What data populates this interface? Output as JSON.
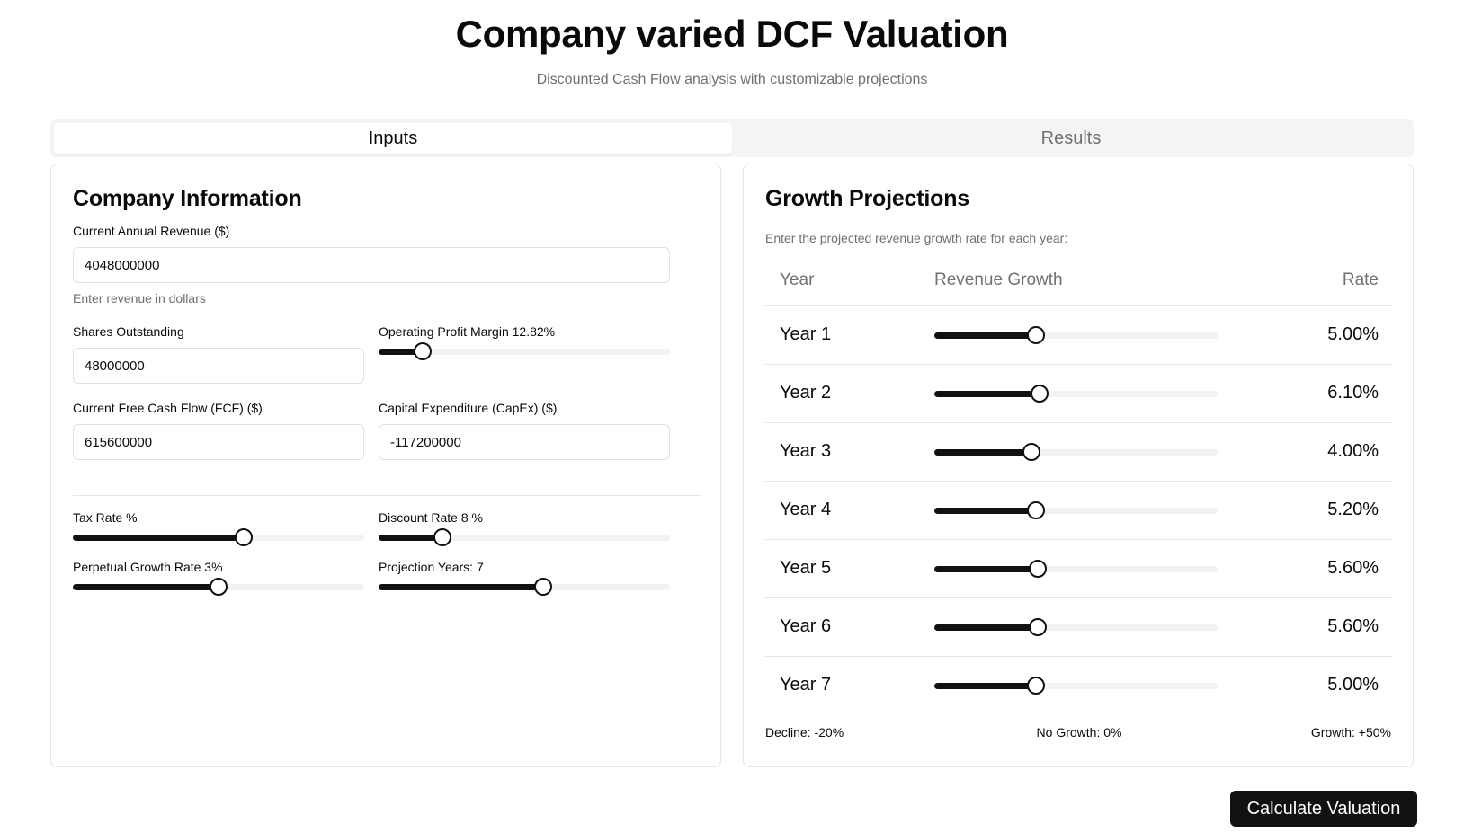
{
  "header": {
    "title": "Company varied DCF Valuation",
    "subtitle": "Discounted Cash Flow analysis with customizable projections"
  },
  "tabs": [
    {
      "label": "Inputs",
      "active": true
    },
    {
      "label": "Results",
      "active": false
    }
  ],
  "company": {
    "title": "Company Information",
    "revenue": {
      "label": "Current Annual Revenue ($)",
      "value": "4048000000",
      "hint": "Enter revenue in dollars"
    },
    "shares": {
      "label": "Shares Outstanding",
      "value": "48000000"
    },
    "margin": {
      "label": "Operating Profit Margin 12.82%",
      "fraction": 0.15
    },
    "fcf": {
      "label": "Current Free Cash Flow (FCF) ($)",
      "value": "615600000"
    },
    "capex": {
      "label": "Capital Expenditure (CapEx) ($)",
      "value": "-117200000"
    },
    "tax": {
      "label": "Tax Rate %",
      "fraction": 0.585
    },
    "discount": {
      "label": "Discount Rate 8 %",
      "fraction": 0.22
    },
    "perpetual": {
      "label": "Perpetual Growth Rate 3%",
      "fraction": 0.5
    },
    "years": {
      "label": "Projection Years: 7",
      "fraction": 0.565
    }
  },
  "growth": {
    "title": "Growth Projections",
    "description": "Enter the projected revenue growth rate for each year:",
    "columns": {
      "year": "Year",
      "growth": "Revenue Growth",
      "rate": "Rate"
    },
    "scale_min": -20,
    "scale_max": 50,
    "rows": [
      {
        "year": "Year 1",
        "rate": "5.00%",
        "value": 5.0
      },
      {
        "year": "Year 2",
        "rate": "6.10%",
        "value": 6.1
      },
      {
        "year": "Year 3",
        "rate": "4.00%",
        "value": 4.0
      },
      {
        "year": "Year 4",
        "rate": "5.20%",
        "value": 5.2
      },
      {
        "year": "Year 5",
        "rate": "5.60%",
        "value": 5.6
      },
      {
        "year": "Year 6",
        "rate": "5.60%",
        "value": 5.6
      },
      {
        "year": "Year 7",
        "rate": "5.00%",
        "value": 5.0
      }
    ],
    "legend": {
      "min": "Decline: -20%",
      "mid": "No Growth: 0%",
      "max": "Growth: +50%"
    }
  },
  "actions": {
    "calculate": "Calculate Valuation"
  },
  "colors": {
    "accent": "#111111",
    "muted": "#707070",
    "border": "#e5e5e5",
    "track": "#f2f2f2"
  }
}
